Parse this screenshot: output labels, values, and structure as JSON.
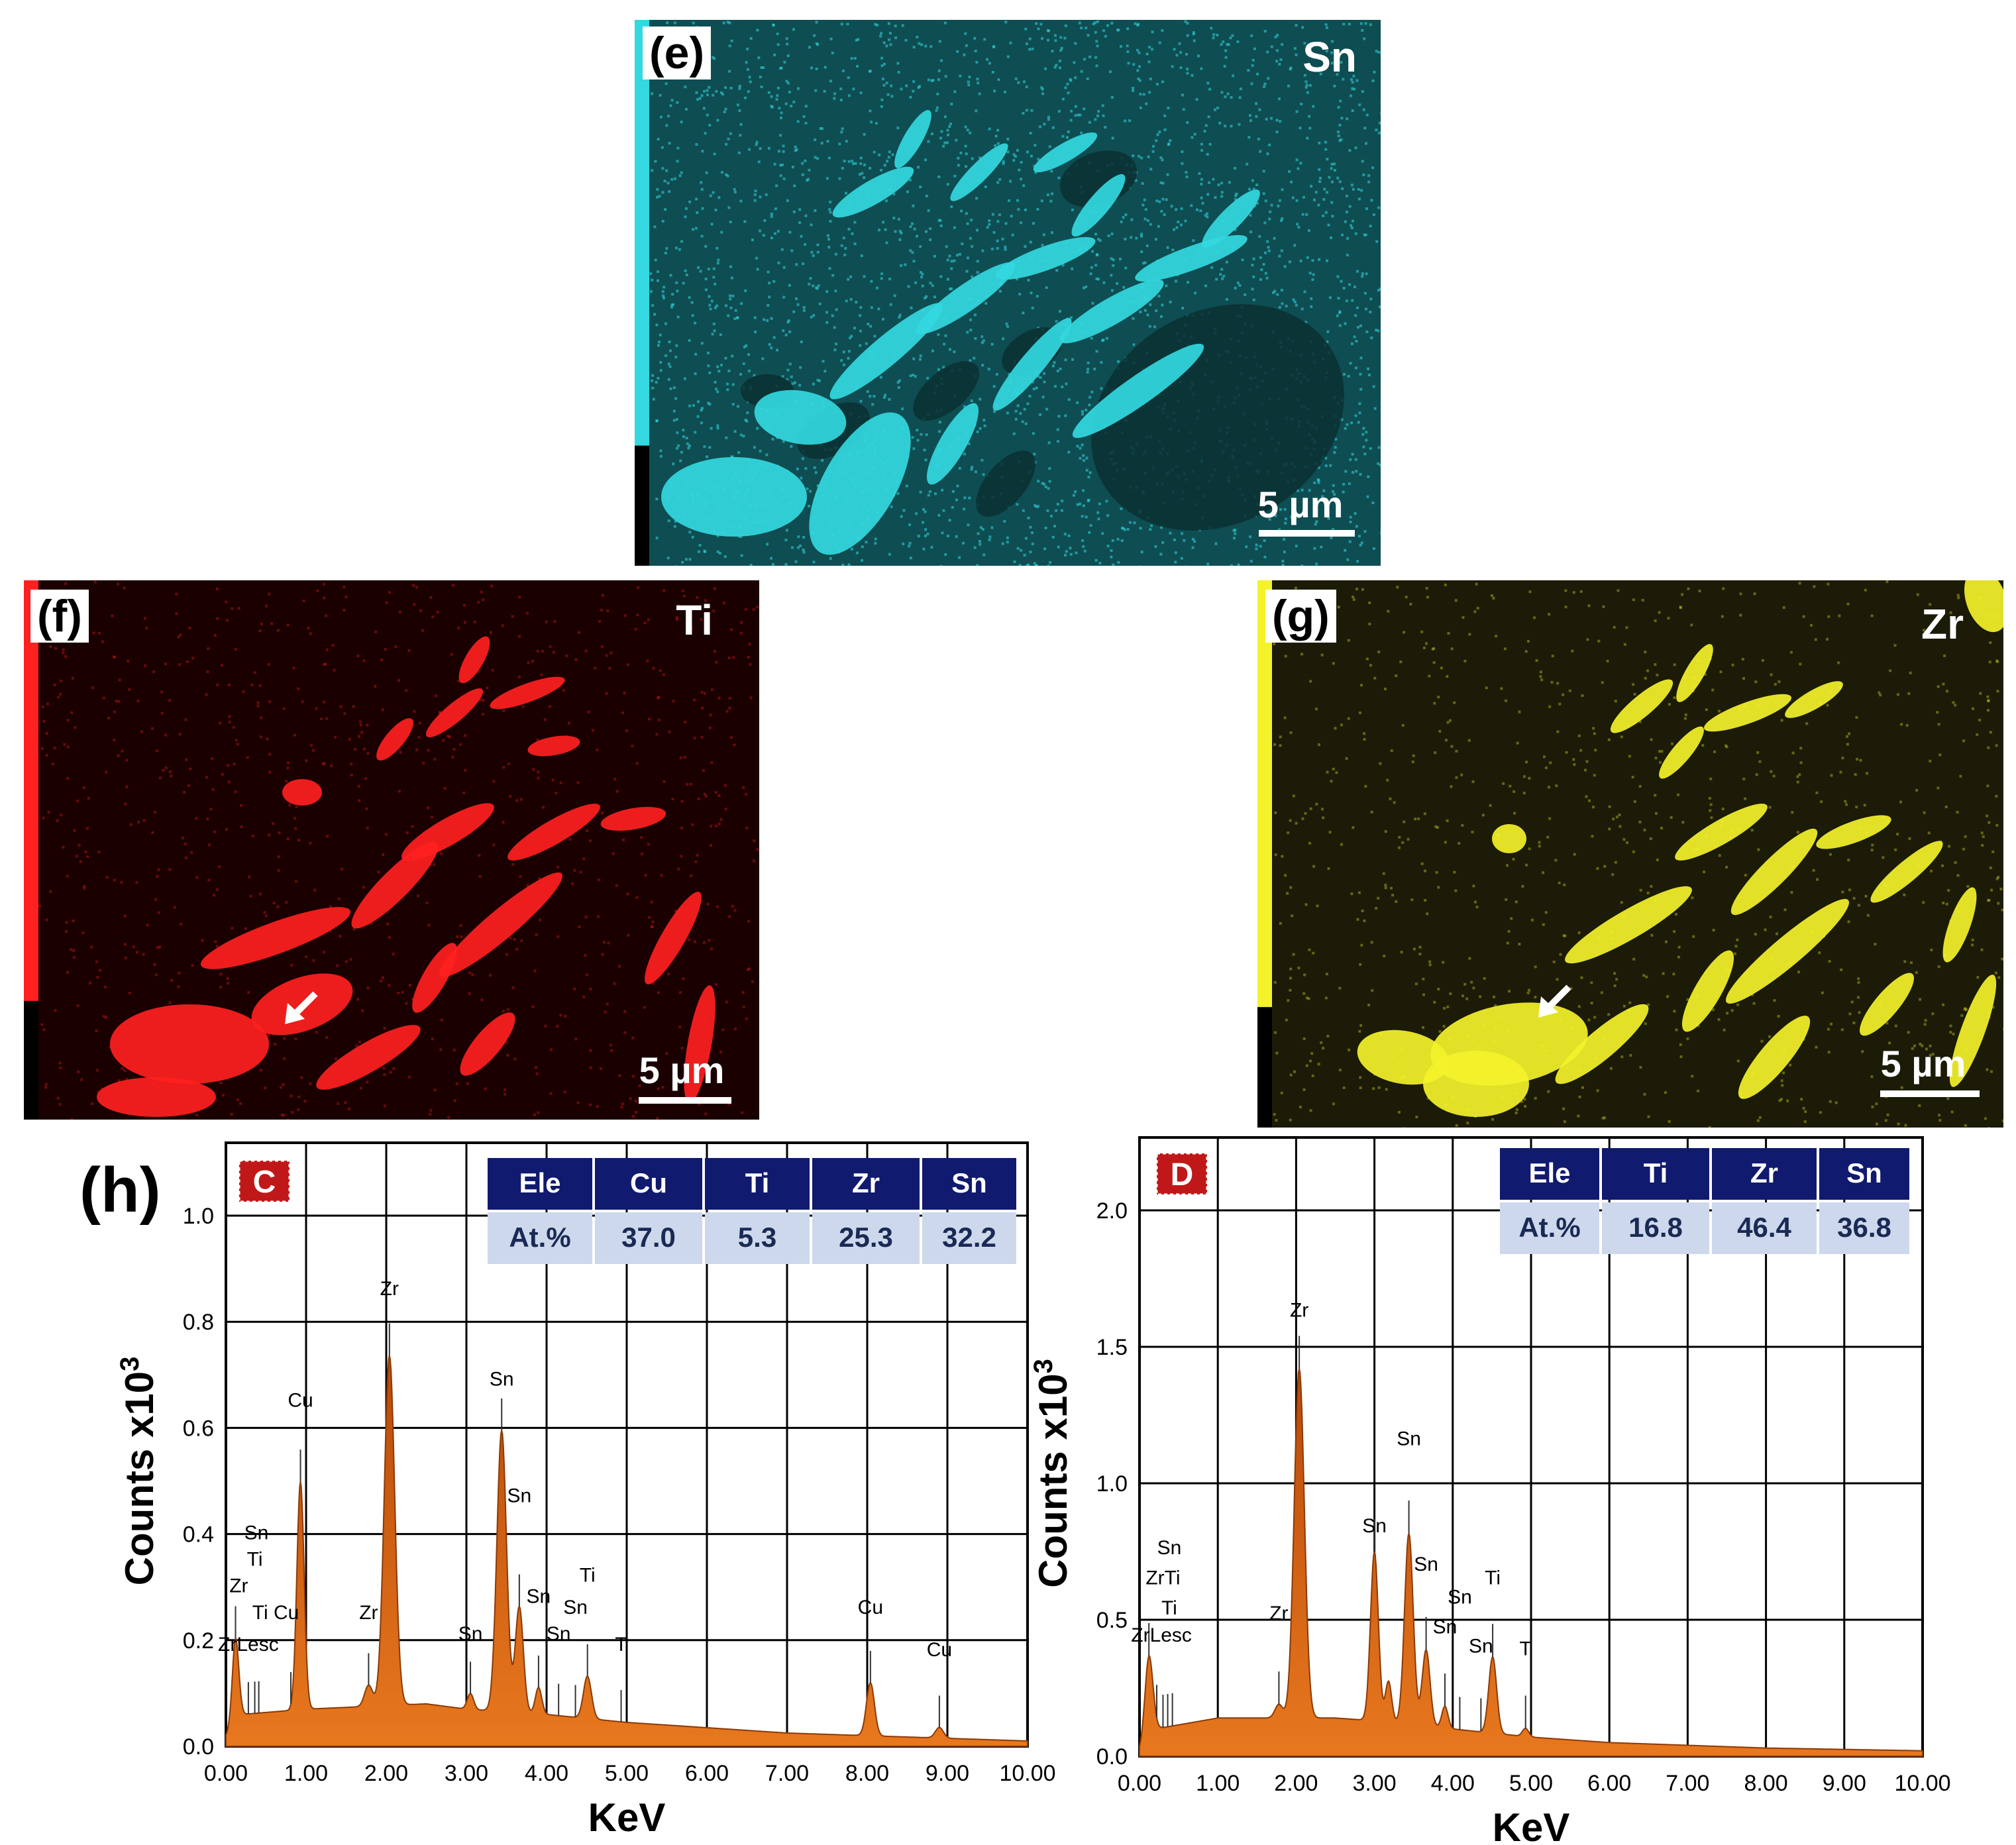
{
  "maps": [
    {
      "label": "(e)",
      "element": "Sn",
      "scale": "5 µm",
      "color": "#33d8e0",
      "bg": "#0e4d52"
    },
    {
      "label": "(f)",
      "element": "Ti",
      "scale": "5 µm",
      "color": "#ff2020",
      "bg": "#1a0000"
    },
    {
      "label": "(g)",
      "element": "Zr",
      "scale": "5 µm",
      "color": "#f4f22a",
      "bg": "#1b1b08"
    }
  ],
  "figure_label": "(h)",
  "chart_data": [
    {
      "type": "line",
      "spot": "C",
      "xlabel": "KeV",
      "ylabel": "Counts x10",
      "ylabel_sup": "3",
      "xlim": [
        0,
        10
      ],
      "ylim": [
        0,
        1.0
      ],
      "xticks": [
        "0.00",
        "1.00",
        "2.00",
        "3.00",
        "4.00",
        "5.00",
        "6.00",
        "7.00",
        "8.00",
        "9.00",
        "10.00"
      ],
      "yticks": [
        "0.0",
        "0.2",
        "0.4",
        "0.6",
        "0.8",
        "1.0"
      ],
      "fill_color": "#e8781e",
      "table": {
        "header": [
          "Ele",
          "Cu",
          "Ti",
          "Zr",
          "Sn"
        ],
        "row": [
          "At.%",
          "37.0",
          "5.3",
          "25.3",
          "32.2"
        ]
      },
      "peaks": [
        {
          "x": 0.12,
          "h": 0.16,
          "w": 0.04
        },
        {
          "x": 0.93,
          "h": 0.43,
          "w": 0.045
        },
        {
          "x": 1.78,
          "h": 0.04,
          "w": 0.05
        },
        {
          "x": 2.04,
          "h": 0.66,
          "w": 0.065
        },
        {
          "x": 3.05,
          "h": 0.03,
          "w": 0.04
        },
        {
          "x": 3.44,
          "h": 0.53,
          "w": 0.06
        },
        {
          "x": 3.66,
          "h": 0.2,
          "w": 0.05
        },
        {
          "x": 3.9,
          "h": 0.05,
          "w": 0.04
        },
        {
          "x": 4.51,
          "h": 0.08,
          "w": 0.05
        },
        {
          "x": 8.04,
          "h": 0.1,
          "w": 0.05
        },
        {
          "x": 8.9,
          "h": 0.02,
          "w": 0.05
        }
      ],
      "background": [
        [
          0,
          0.02
        ],
        [
          0.2,
          0.06
        ],
        [
          1.0,
          0.07
        ],
        [
          2.5,
          0.08
        ],
        [
          3.0,
          0.07
        ],
        [
          4.0,
          0.06
        ],
        [
          5.0,
          0.045
        ],
        [
          6.0,
          0.035
        ],
        [
          7.0,
          0.025
        ],
        [
          8.0,
          0.02
        ],
        [
          9.0,
          0.015
        ],
        [
          10.0,
          0.01
        ]
      ],
      "labels": [
        {
          "text": "Zr",
          "x": 2.04,
          "y": 0.85
        },
        {
          "text": "Cu",
          "x": 0.93,
          "y": 0.64
        },
        {
          "text": "Sn",
          "x": 3.44,
          "y": 0.68
        },
        {
          "text": "Sn",
          "x": 3.66,
          "y": 0.46
        },
        {
          "text": "Sn",
          "x": 0.38,
          "y": 0.39
        },
        {
          "text": "Ti",
          "x": 0.36,
          "y": 0.34
        },
        {
          "text": "Zr",
          "x": 0.16,
          "y": 0.29
        },
        {
          "text": "Ti Cu",
          "x": 0.62,
          "y": 0.24
        },
        {
          "text": "ZrLesc",
          "x": 0.28,
          "y": 0.18
        },
        {
          "text": "Zr",
          "x": 1.78,
          "y": 0.24
        },
        {
          "text": "Sn",
          "x": 3.05,
          "y": 0.2
        },
        {
          "text": "Sn",
          "x": 3.9,
          "y": 0.27
        },
        {
          "text": "Ti",
          "x": 4.51,
          "y": 0.31
        },
        {
          "text": "Sn",
          "x": 4.36,
          "y": 0.25
        },
        {
          "text": "Sn",
          "x": 4.15,
          "y": 0.2
        },
        {
          "text": "T",
          "x": 4.93,
          "y": 0.18
        },
        {
          "text": "Cu",
          "x": 8.04,
          "y": 0.25
        },
        {
          "text": "Cu",
          "x": 8.9,
          "y": 0.17
        }
      ],
      "markers": [
        0.12,
        0.28,
        0.36,
        0.41,
        0.81,
        0.93,
        1.78,
        2.04,
        3.05,
        3.44,
        3.66,
        3.9,
        4.15,
        4.36,
        4.51,
        4.93,
        8.04,
        8.9
      ]
    },
    {
      "type": "line",
      "spot": "D",
      "xlabel": "KeV",
      "ylabel": "Counts x10",
      "ylabel_sup": "3",
      "xlim": [
        0,
        10
      ],
      "ylim": [
        0,
        2.0
      ],
      "xticks": [
        "0.00",
        "1.00",
        "2.00",
        "3.00",
        "4.00",
        "5.00",
        "6.00",
        "7.00",
        "8.00",
        "9.00",
        "10.00"
      ],
      "yticks": [
        "0.0",
        "0.5",
        "1.0",
        "1.5",
        "2.0"
      ],
      "fill_color": "#e8781e",
      "table": {
        "header": [
          "Ele",
          "Ti",
          "Zr",
          "Sn"
        ],
        "row": [
          "At.%",
          "16.8",
          "46.4",
          "36.8"
        ]
      },
      "peaks": [
        {
          "x": 0.12,
          "h": 0.3,
          "w": 0.05
        },
        {
          "x": 1.78,
          "h": 0.05,
          "w": 0.05
        },
        {
          "x": 2.04,
          "h": 1.28,
          "w": 0.065
        },
        {
          "x": 3.0,
          "h": 0.62,
          "w": 0.05
        },
        {
          "x": 3.18,
          "h": 0.15,
          "w": 0.04
        },
        {
          "x": 3.44,
          "h": 0.7,
          "w": 0.055
        },
        {
          "x": 3.66,
          "h": 0.28,
          "w": 0.05
        },
        {
          "x": 3.9,
          "h": 0.08,
          "w": 0.04
        },
        {
          "x": 4.51,
          "h": 0.28,
          "w": 0.05
        },
        {
          "x": 4.93,
          "h": 0.03,
          "w": 0.04
        }
      ],
      "background": [
        [
          0,
          0.02
        ],
        [
          0.2,
          0.1
        ],
        [
          1.0,
          0.14
        ],
        [
          2.5,
          0.14
        ],
        [
          3.0,
          0.13
        ],
        [
          4.0,
          0.1
        ],
        [
          5.0,
          0.07
        ],
        [
          6.0,
          0.05
        ],
        [
          7.0,
          0.04
        ],
        [
          8.0,
          0.03
        ],
        [
          9.0,
          0.025
        ],
        [
          10.0,
          0.02
        ]
      ],
      "labels": [
        {
          "text": "Zr",
          "x": 2.04,
          "y": 1.61
        },
        {
          "text": "Sn",
          "x": 3.44,
          "y": 1.14
        },
        {
          "text": "Sn",
          "x": 3.0,
          "y": 0.82
        },
        {
          "text": "Sn",
          "x": 3.66,
          "y": 0.68
        },
        {
          "text": "Sn",
          "x": 0.38,
          "y": 0.74
        },
        {
          "text": "ZrTi",
          "x": 0.3,
          "y": 0.63
        },
        {
          "text": "Ti",
          "x": 0.38,
          "y": 0.52
        },
        {
          "text": "ZrLesc",
          "x": 0.28,
          "y": 0.42
        },
        {
          "text": "Zr",
          "x": 1.78,
          "y": 0.5
        },
        {
          "text": "Sn",
          "x": 3.9,
          "y": 0.45
        },
        {
          "text": "Sn",
          "x": 4.09,
          "y": 0.56
        },
        {
          "text": "Ti",
          "x": 4.51,
          "y": 0.63
        },
        {
          "text": "Sn",
          "x": 4.36,
          "y": 0.38
        },
        {
          "text": "T",
          "x": 4.93,
          "y": 0.37
        }
      ],
      "markers": [
        0.12,
        0.22,
        0.3,
        0.36,
        0.42,
        1.78,
        2.04,
        3.0,
        3.44,
        3.66,
        3.9,
        4.09,
        4.36,
        4.51,
        4.93
      ]
    }
  ]
}
